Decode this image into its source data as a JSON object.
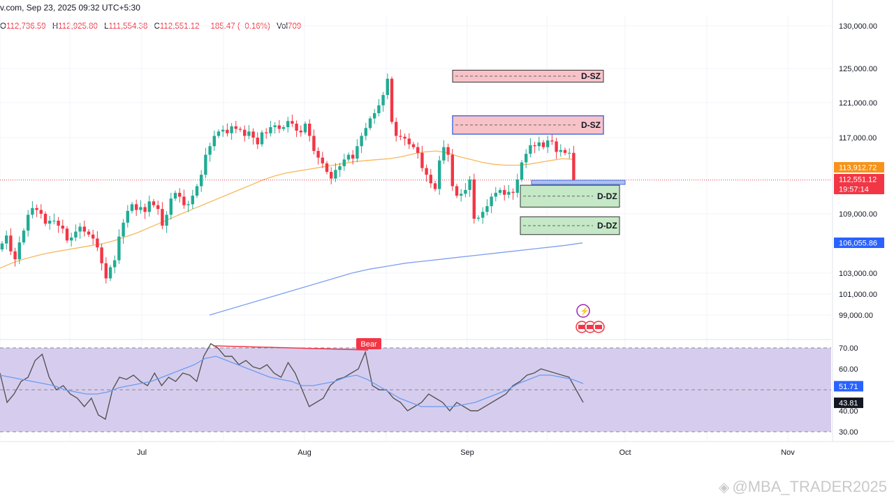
{
  "header": {
    "title_line": "v.com, Sep 23, 2025 09:32 UTC+5:30",
    "ohlc": {
      "o_label": "O",
      "o_value": "112,736.59",
      "h_label": "H",
      "h_value": "112,925.80",
      "l_label": "L",
      "l_value": "111,554.38",
      "c_label": "C",
      "c_value": "112,551.12",
      "change": "−185.47 (−0.16%)",
      "vol_label": "Vol",
      "vol_value": "709"
    }
  },
  "watermark": "@MBA_TRADER2025",
  "colors": {
    "bull": "#22ab94",
    "bear": "#f23645",
    "ma_orange": "#f7b85a",
    "ma_blue": "#7e9ff0",
    "rsi_line": "#555555",
    "rsi_ma": "#6b9cf0",
    "rsi_band": "#d6cdee",
    "supply_fill": "#f8c3c8",
    "demand_fill": "#c5e8c6",
    "highlight_border": "#4a6ee0"
  },
  "chart_data": [
    {
      "type": "candlestick",
      "title": "",
      "x_tick_labels": [
        "Jul",
        "Aug",
        "Sep",
        "Oct",
        "Nov"
      ],
      "y_tick_labels": [
        "130,000.00",
        "125,000.00",
        "121,000.00",
        "117,000.00",
        "109,000.00",
        "103,000.00",
        "101,000.00",
        "99,000.00"
      ],
      "price_labels": [
        {
          "text": "113,912.72",
          "value": 113912.72,
          "color": "#f7931a"
        },
        {
          "text": "112,551.12",
          "value": 112551.12,
          "color": "#f23645"
        },
        {
          "text": "19:57:14",
          "value": 112551.12,
          "color": "#f23645"
        },
        {
          "text": "106,055.86",
          "value": 106055.86,
          "color": "#2962ff"
        }
      ],
      "close_series": [
        106000,
        106800,
        105200,
        104400,
        106100,
        107300,
        108900,
        109600,
        109400,
        109000,
        108000,
        108300,
        108300,
        107800,
        107500,
        106300,
        106600,
        107200,
        107700,
        107200,
        106900,
        106500,
        105600,
        104000,
        102500,
        103600,
        104300,
        106700,
        108100,
        109300,
        110000,
        109400,
        109700,
        109200,
        110300,
        109900,
        109500,
        107800,
        108900,
        110600,
        111200,
        110800,
        109900,
        110000,
        110900,
        111900,
        113100,
        115200,
        116100,
        117200,
        117700,
        117900,
        117500,
        118300,
        118000,
        117900,
        117200,
        117700,
        117000,
        116300,
        117600,
        117500,
        118200,
        118400,
        118000,
        118200,
        118900,
        118600,
        117800,
        117600,
        118600,
        117200,
        115600,
        114900,
        114300,
        113400,
        112700,
        113600,
        114000,
        114700,
        115200,
        114800,
        116100,
        117200,
        118100,
        119200,
        119800,
        120700,
        121900,
        123800,
        118800,
        117200,
        117100,
        116900,
        116300,
        116000,
        115400,
        113800,
        113100,
        112200,
        111600,
        114600,
        116000,
        115200,
        111900,
        110900,
        111100,
        111500,
        112600,
        108500,
        108600,
        109200,
        109800,
        110800,
        111200,
        111500,
        111000,
        111300,
        111200,
        112600,
        114400,
        115300,
        116200,
        116100,
        116500,
        116000,
        116700,
        116600,
        115500,
        115700,
        115400,
        115400,
        112551
      ],
      "ma50": [
        103500,
        104000,
        104400,
        104700,
        105000,
        105200,
        105400,
        105600,
        105800,
        106000,
        106300,
        106700,
        107100,
        107600,
        108100,
        108600,
        109100,
        109600,
        110100,
        110600,
        111100,
        111600,
        112100,
        112600,
        113000,
        113300,
        113500,
        113700,
        113900,
        114100,
        114300,
        114500,
        114600,
        114700,
        114800,
        115000,
        115300,
        115500,
        115600,
        115400,
        115000,
        114700,
        114400,
        114200,
        114100,
        114100,
        114200,
        114400,
        114600,
        114800,
        114700
      ],
      "ma200": [
        99000,
        99500,
        100000,
        100500,
        101000,
        101500,
        102000,
        102500,
        103000,
        103400,
        103700,
        104000,
        104200,
        104400,
        104600,
        104800,
        105000,
        105200,
        105400,
        105600,
        105800,
        106055
      ],
      "zones": [
        {
          "label": "D-SZ",
          "top": 124800,
          "bottom": 123400,
          "kind": "supply",
          "highlight": false
        },
        {
          "label": "D-SZ",
          "top": 119500,
          "bottom": 117400,
          "kind": "supply",
          "highlight": true
        },
        {
          "label": "D-DZ",
          "top": 112000,
          "bottom": 109700,
          "kind": "demand",
          "highlight": false
        },
        {
          "label": "D-DZ",
          "top": 108700,
          "bottom": 106900,
          "kind": "demand",
          "highlight": false
        }
      ]
    },
    {
      "type": "line",
      "title": "RSI",
      "y_tick_labels": [
        "70.00",
        "60.00",
        "40.00",
        "30.00"
      ],
      "value_labels": [
        {
          "text": "51.71",
          "value": 51.71,
          "color": "#2962ff"
        },
        {
          "text": "43.81",
          "value": 43.81,
          "color": "#131722"
        }
      ],
      "rsi": [
        58,
        44,
        48,
        54,
        56,
        64,
        67,
        56,
        50,
        52,
        48,
        46,
        42,
        46,
        38,
        36,
        50,
        56,
        55,
        57,
        54,
        52,
        58,
        52,
        56,
        54,
        58,
        57,
        54,
        66,
        72,
        70,
        66,
        66,
        62,
        64,
        61,
        60,
        62,
        58,
        56,
        63,
        58,
        50,
        42,
        44,
        46,
        52,
        55,
        56,
        58,
        60,
        68,
        52,
        50,
        50,
        46,
        44,
        40,
        42,
        44,
        48,
        46,
        44,
        40,
        44,
        42,
        40,
        40,
        42,
        44,
        46,
        48,
        52,
        54,
        57,
        58,
        60,
        59,
        58,
        57,
        56,
        50,
        44
      ],
      "rsi_ma": [
        57,
        56,
        55,
        54,
        53,
        52,
        50,
        49,
        48,
        48,
        49,
        51,
        52,
        53,
        54,
        56,
        58,
        60,
        62,
        65,
        66,
        64,
        62,
        60,
        58,
        56,
        55,
        54,
        52,
        52,
        53,
        54,
        56,
        57,
        55,
        52,
        49,
        46,
        44,
        42,
        42,
        42,
        42,
        43,
        44,
        46,
        48,
        50,
        53,
        55,
        57,
        57,
        56,
        55,
        53
      ],
      "divergence_label": "Bear"
    }
  ]
}
